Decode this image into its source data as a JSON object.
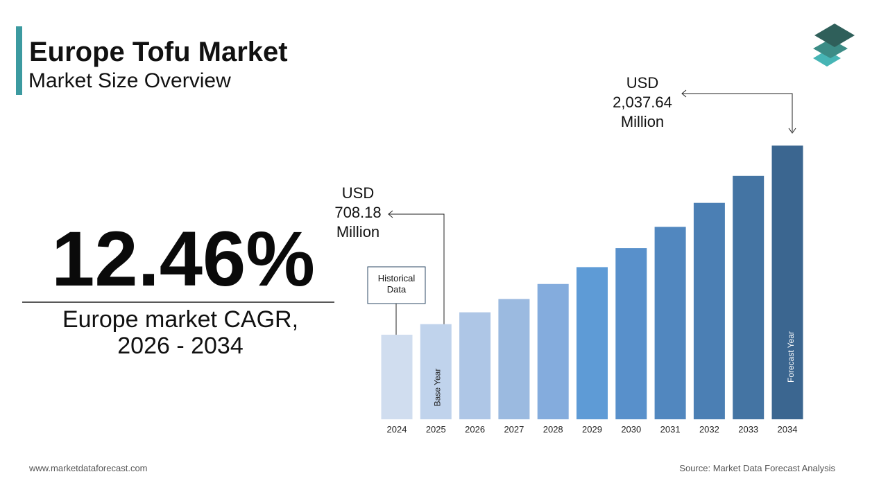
{
  "header": {
    "title": "Europe Tofu Market",
    "subtitle": "Market Size Overview"
  },
  "cagr": {
    "figure": "12.46%",
    "caption": "Europe market CAGR, 2026 - 2034"
  },
  "chart_data": {
    "type": "bar",
    "categories": [
      "2024",
      "2025",
      "2026",
      "2027",
      "2028",
      "2029",
      "2030",
      "2031",
      "2032",
      "2033",
      "2034"
    ],
    "values": [
      629.7,
      708.18,
      796.4,
      895.6,
      1007.2,
      1132.7,
      1273.8,
      1432.5,
      1611.0,
      1811.7,
      2037.64
    ],
    "value_labels": [
      null,
      "USD 708.18 Million",
      null,
      null,
      null,
      null,
      null,
      null,
      null,
      null,
      "USD 2,037.64 Million"
    ],
    "colors": [
      "#d0ddef",
      "#c0d3ec",
      "#aec6e6",
      "#9bbae0",
      "#84acdd",
      "#5e9bd6",
      "#5890cb",
      "#5187bf",
      "#4b7fb4",
      "#4474a3",
      "#3b6690"
    ],
    "annotations": {
      "historical": "Historical Data",
      "base_year": "Base Year",
      "forecast_year": "Forecast Year"
    }
  },
  "footer": {
    "website": "www.marketdataforecast.com",
    "source": "Source: Market Data Forecast Analysis"
  }
}
